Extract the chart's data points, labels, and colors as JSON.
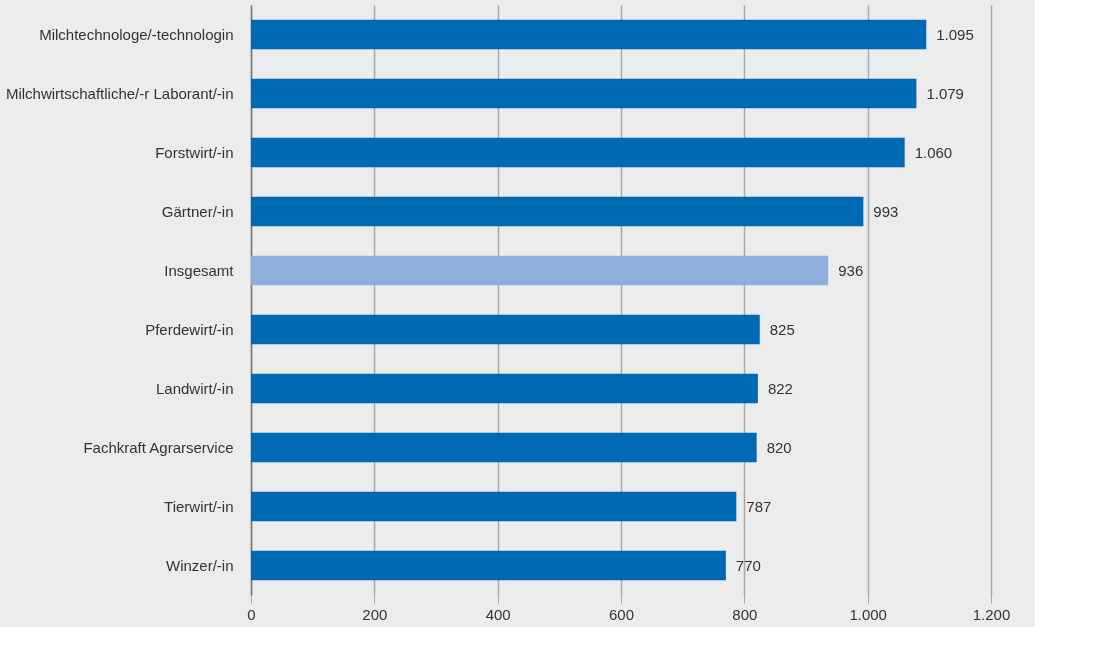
{
  "chart_data": {
    "type": "bar",
    "orientation": "horizontal",
    "categories": [
      "Milchtechnologe/-technologin",
      "Milchwirtschaftliche/-r Laborant/-in",
      "Forstwirt/-in",
      "Gärtner/-in",
      "Insgesamt",
      "Pferdewirt/-in",
      "Landwirt/-in",
      "Fachkraft Agrarservice",
      "Tierwirt/-in",
      "Winzer/-in"
    ],
    "values": [
      1095,
      1079,
      1060,
      993,
      936,
      825,
      822,
      820,
      787,
      770
    ],
    "value_labels": [
      "1.095",
      "1.079",
      "1.060",
      "993",
      "936",
      "825",
      "822",
      "820",
      "787",
      "770"
    ],
    "colors": [
      "#0069b4",
      "#0069b4",
      "#0069b4",
      "#0069b4",
      "#8eaedc",
      "#0069b4",
      "#0069b4",
      "#0069b4",
      "#0069b4",
      "#0069b4"
    ],
    "xlim": [
      0,
      1200
    ],
    "xticks": [
      0,
      200,
      400,
      600,
      800,
      {
        "value": 1000,
        "label": "1.000"
      },
      {
        "value": 1200,
        "label": "1.200"
      }
    ],
    "grid": "x"
  }
}
